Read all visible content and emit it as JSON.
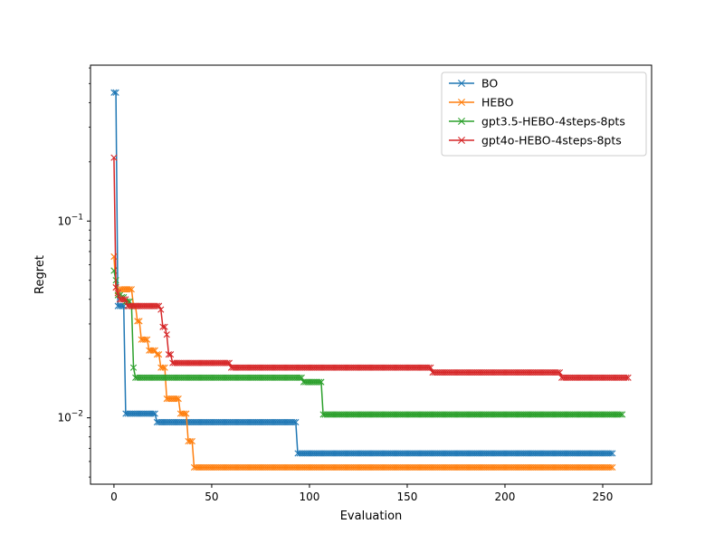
{
  "chart_data": {
    "type": "line",
    "xlabel": "Evaluation",
    "ylabel": "Regret",
    "y_scale": "log",
    "xlim": [
      -12,
      275
    ],
    "ylim": [
      0.0046,
      0.62
    ],
    "x_ticks": [
      0,
      50,
      100,
      150,
      200,
      250
    ],
    "x_tick_labels": [
      "0",
      "50",
      "100",
      "150",
      "200",
      "250"
    ],
    "y_major_ticks": [
      0.01,
      0.1
    ],
    "y_tick_labels": [
      "10^-2",
      "10^-1"
    ],
    "grid": false,
    "legend_position": "top-right",
    "marker": "x",
    "series": [
      {
        "name": "BO",
        "color": "#1f77b4",
        "last_x": 255,
        "steps": [
          [
            0,
            0.45
          ],
          [
            1,
            0.45
          ],
          [
            2,
            0.037
          ],
          [
            6,
            0.0105
          ],
          [
            22,
            0.0095
          ],
          [
            94,
            0.0066
          ]
        ]
      },
      {
        "name": "HEBO",
        "color": "#ff7f0e",
        "last_x": 255,
        "steps": [
          [
            0,
            0.066
          ],
          [
            1,
            0.046
          ],
          [
            2,
            0.044
          ],
          [
            3,
            0.045
          ],
          [
            10,
            0.037
          ],
          [
            12,
            0.031
          ],
          [
            14,
            0.025
          ],
          [
            18,
            0.022
          ],
          [
            22,
            0.021
          ],
          [
            24,
            0.018
          ],
          [
            27,
            0.0125
          ],
          [
            34,
            0.0105
          ],
          [
            38,
            0.0076
          ],
          [
            41,
            0.0056
          ]
        ]
      },
      {
        "name": "gpt3.5-HEBO-4steps-8pts",
        "color": "#2ca02c",
        "last_x": 260,
        "steps": [
          [
            0,
            0.056
          ],
          [
            1,
            0.05
          ],
          [
            2,
            0.042
          ],
          [
            4,
            0.041
          ],
          [
            6,
            0.039
          ],
          [
            9,
            0.037
          ],
          [
            10,
            0.018
          ],
          [
            11,
            0.016
          ],
          [
            97,
            0.0152
          ],
          [
            107,
            0.0104
          ]
        ]
      },
      {
        "name": "gpt4o-HEBO-4steps-8pts",
        "color": "#d62728",
        "last_x": 263,
        "steps": [
          [
            0,
            0.21
          ],
          [
            1,
            0.046
          ],
          [
            2,
            0.043
          ],
          [
            3,
            0.04
          ],
          [
            7,
            0.037
          ],
          [
            24,
            0.0355
          ],
          [
            25,
            0.029
          ],
          [
            27,
            0.0265
          ],
          [
            28,
            0.021
          ],
          [
            30,
            0.019
          ],
          [
            60,
            0.018
          ],
          [
            163,
            0.017
          ],
          [
            229,
            0.016
          ]
        ]
      }
    ]
  }
}
